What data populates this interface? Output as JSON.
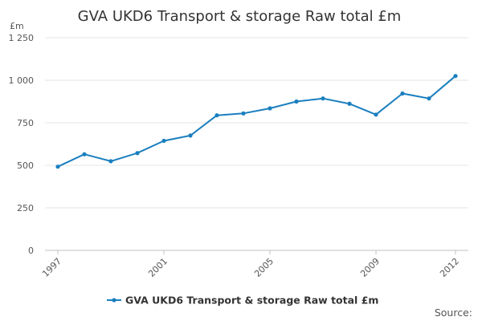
{
  "chart_data": {
    "type": "line",
    "title": "GVA UKD6 Transport & storage Raw total £m",
    "ylabel": "£m",
    "xlabel": "",
    "ylim": [
      0,
      1250
    ],
    "yticks": [
      "0",
      "250",
      "500",
      "750",
      "1 000",
      "1 250"
    ],
    "ytick_values": [
      0,
      250,
      500,
      750,
      1000,
      1250
    ],
    "x": [
      1997,
      1998,
      1999,
      2000,
      2001,
      2002,
      2003,
      2004,
      2005,
      2006,
      2007,
      2008,
      2009,
      2010,
      2011,
      2012
    ],
    "xticks": [
      "1997",
      "2001",
      "2005",
      "2009",
      "2012"
    ],
    "grid": "horizontal",
    "legend_position": "bottom-center",
    "series": [
      {
        "name": "GVA UKD6 Transport & storage Raw total £m",
        "color": "#1a7fbf",
        "values": [
          492,
          565,
          524,
          572,
          644,
          675,
          794,
          805,
          835,
          875,
          893,
          862,
          798,
          922,
          893,
          1025
        ]
      }
    ]
  },
  "source_label": "Source:"
}
